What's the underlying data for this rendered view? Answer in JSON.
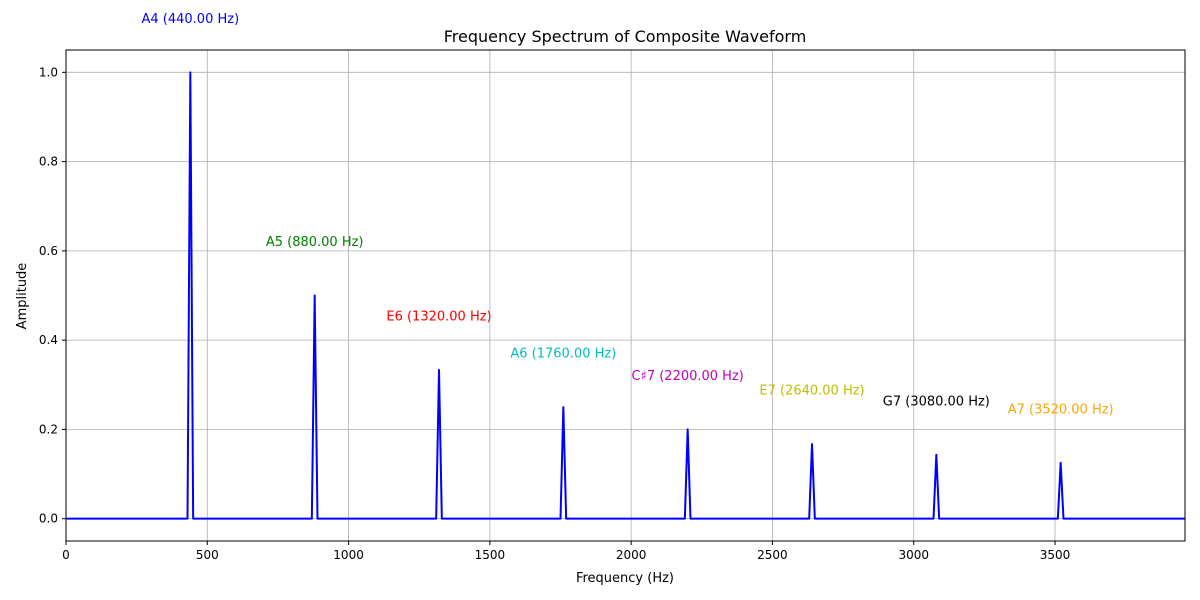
{
  "chart_data": {
    "type": "line",
    "title": "Frequency Spectrum of Composite Waveform",
    "xlabel": "Frequency (Hz)",
    "ylabel": "Amplitude",
    "xlim": [
      0,
      3960
    ],
    "ylim": [
      -0.05,
      1.05
    ],
    "x_ticks": [
      0,
      500,
      1000,
      1500,
      2000,
      2500,
      3000,
      3500
    ],
    "y_ticks": [
      0.0,
      0.2,
      0.4,
      0.6,
      0.8,
      1.0
    ],
    "x_tick_labels": [
      "0",
      "500",
      "1000",
      "1500",
      "2000",
      "2500",
      "3000",
      "3500"
    ],
    "y_tick_labels": [
      "0.0",
      "0.2",
      "0.4",
      "0.6",
      "0.8",
      "1.0"
    ],
    "grid": true,
    "line_color": "#0000ff",
    "peak_halfwidth_hz": 10,
    "peaks": [
      {
        "note": "A4",
        "freq": 440,
        "amplitude": 1.0,
        "label": "A4 (440.00 Hz)",
        "color": "#0000ff"
      },
      {
        "note": "A5",
        "freq": 880,
        "amplitude": 0.5,
        "label": "A5 (880.00 Hz)",
        "color": "#008000"
      },
      {
        "note": "E6",
        "freq": 1320,
        "amplitude": 0.333,
        "label": "E6 (1320.00 Hz)",
        "color": "#ff0000"
      },
      {
        "note": "A6",
        "freq": 1760,
        "amplitude": 0.25,
        "label": "A6 (1760.00 Hz)",
        "color": "#00bfbf"
      },
      {
        "note": "C♯7",
        "freq": 2200,
        "amplitude": 0.2,
        "label": "C♯7 (2200.00 Hz)",
        "color": "#bf00bf"
      },
      {
        "note": "E7",
        "freq": 2640,
        "amplitude": 0.167,
        "label": "E7 (2640.00 Hz)",
        "color": "#bfbf00"
      },
      {
        "note": "G7",
        "freq": 3080,
        "amplitude": 0.143,
        "label": "G7 (3080.00 Hz)",
        "color": "#000000"
      },
      {
        "note": "A7",
        "freq": 3520,
        "amplitude": 0.125,
        "label": "A7 (3520.00 Hz)",
        "color": "#ffa500"
      }
    ]
  }
}
